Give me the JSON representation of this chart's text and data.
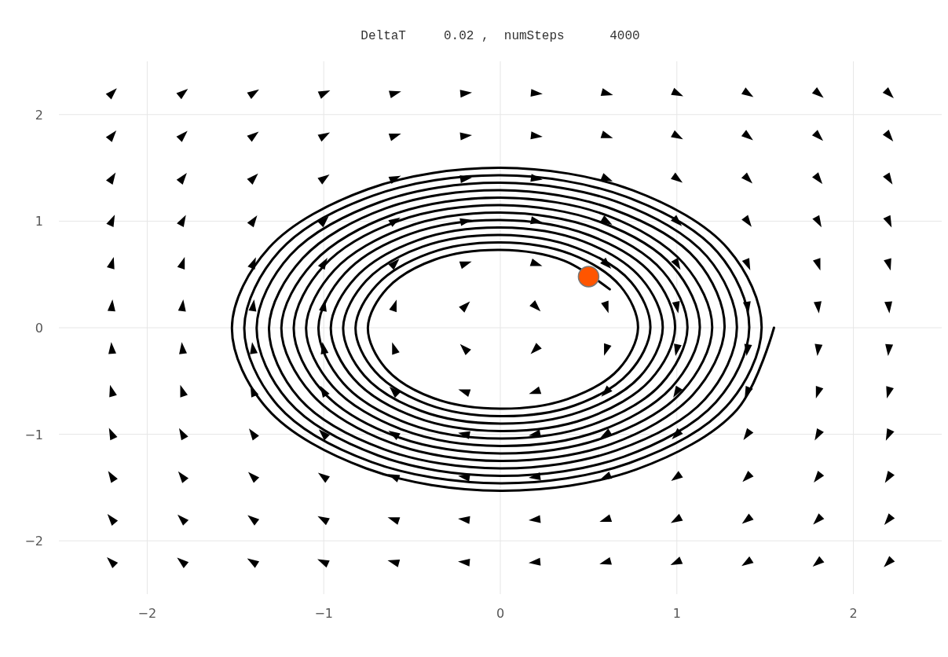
{
  "chart_data": {
    "type": "line",
    "title": "DeltaT     0.02 ,  numSteps      4000",
    "xlim": [
      -2.5,
      2.5
    ],
    "ylim": [
      -2.5,
      2.5
    ],
    "xticks": [
      -2,
      -1,
      0,
      1,
      2
    ],
    "yticks": [
      -2,
      -1,
      0,
      1,
      2
    ],
    "grid": true,
    "series": [
      {
        "type": "scatter",
        "marker": "triangle",
        "color": "#000000",
        "x": [
          -2.2,
          -1.8,
          -1.4,
          -1.0,
          -0.6,
          -0.2,
          0.2,
          0.6,
          1.0,
          1.4,
          1.8,
          2.2,
          -2.2,
          -1.8,
          -1.4,
          -1.0,
          -0.6,
          -0.2,
          0.2,
          0.6,
          1.0,
          1.4,
          1.8,
          2.2,
          -2.2,
          -1.8,
          -1.4,
          -1.0,
          -0.6,
          -0.2,
          0.2,
          0.6,
          1.0,
          1.4,
          1.8,
          2.2,
          -2.2,
          -1.8,
          -1.4,
          -1.0,
          -0.6,
          -0.2,
          0.2,
          0.6,
          1.0,
          1.4,
          1.8,
          2.2,
          -2.2,
          -1.8,
          -1.4,
          -1.0,
          -0.6,
          -0.2,
          0.2,
          0.6,
          1.0,
          1.4,
          1.8,
          2.2,
          -2.2,
          -1.8,
          -1.4,
          -1.0,
          -0.6,
          -0.2,
          0.2,
          0.6,
          1.0,
          1.4,
          1.8,
          2.2,
          -2.2,
          -1.8,
          -1.4,
          -1.0,
          -0.6,
          -0.2,
          0.2,
          0.6,
          1.0,
          1.4,
          1.8,
          2.2,
          -2.2,
          -1.8,
          -1.4,
          -1.0,
          -0.6,
          -0.2,
          0.2,
          0.6,
          1.0,
          1.4,
          1.8,
          2.2,
          -2.2,
          -1.8,
          -1.4,
          -1.0,
          -0.6,
          -0.2,
          0.2,
          0.6,
          1.0,
          1.4,
          1.8,
          2.2,
          -2.2,
          -1.8,
          -1.4,
          -1.0,
          -0.6,
          -0.2,
          0.2,
          0.6,
          1.0,
          1.4,
          1.8,
          2.2,
          -2.2,
          -1.8,
          -1.4,
          -1.0,
          -0.6,
          -0.2,
          0.2,
          0.6,
          1.0,
          1.4,
          1.8,
          2.2,
          -2.2,
          -1.8,
          -1.4,
          -1.0,
          -0.6,
          -0.2,
          0.2,
          0.6,
          1.0,
          1.4,
          1.8,
          2.2
        ],
        "values": [
          2.2,
          2.2,
          2.2,
          2.2,
          2.2,
          2.2,
          2.2,
          2.2,
          2.2,
          2.2,
          2.2,
          2.2,
          1.8,
          1.8,
          1.8,
          1.8,
          1.8,
          1.8,
          1.8,
          1.8,
          1.8,
          1.8,
          1.8,
          1.8,
          1.4,
          1.4,
          1.4,
          1.4,
          1.4,
          1.4,
          1.4,
          1.4,
          1.4,
          1.4,
          1.4,
          1.4,
          1.0,
          1.0,
          1.0,
          1.0,
          1.0,
          1.0,
          1.0,
          1.0,
          1.0,
          1.0,
          1.0,
          1.0,
          0.6,
          0.6,
          0.6,
          0.6,
          0.6,
          0.6,
          0.6,
          0.6,
          0.6,
          0.6,
          0.6,
          0.6,
          0.2,
          0.2,
          0.2,
          0.2,
          0.2,
          0.2,
          0.2,
          0.2,
          0.2,
          0.2,
          0.2,
          0.2,
          -0.2,
          -0.2,
          -0.2,
          -0.2,
          -0.2,
          -0.2,
          -0.2,
          -0.2,
          -0.2,
          -0.2,
          -0.2,
          -0.2,
          -0.6,
          -0.6,
          -0.6,
          -0.6,
          -0.6,
          -0.6,
          -0.6,
          -0.6,
          -0.6,
          -0.6,
          -0.6,
          -0.6,
          -1.0,
          -1.0,
          -1.0,
          -1.0,
          -1.0,
          -1.0,
          -1.0,
          -1.0,
          -1.0,
          -1.0,
          -1.0,
          -1.0,
          -1.4,
          -1.4,
          -1.4,
          -1.4,
          -1.4,
          -1.4,
          -1.4,
          -1.4,
          -1.4,
          -1.4,
          -1.4,
          -1.4,
          -1.8,
          -1.8,
          -1.8,
          -1.8,
          -1.8,
          -1.8,
          -1.8,
          -1.8,
          -1.8,
          -1.8,
          -1.8,
          -1.8,
          -2.2,
          -2.2,
          -2.2,
          -2.2,
          -2.2,
          -2.2,
          -2.2,
          -2.2,
          -2.2,
          -2.2,
          -2.2,
          -2.2
        ]
      },
      {
        "color": "#000000",
        "line_style": "solid",
        "marker": "none",
        "x": [
          1.55,
          1.34,
          0.77,
          0,
          -0.76,
          -1.32,
          -1.52,
          -1.31,
          -0.75,
          0,
          0.75,
          1.29,
          1.48,
          1.28,
          0.73,
          0,
          -0.73,
          -1.26,
          -1.45,
          -1.25,
          -0.72,
          0,
          0.71,
          1.23,
          1.41,
          1.22,
          0.7,
          0,
          -0.69,
          -1.2,
          -1.38,
          -1.19,
          -0.68,
          0,
          0.68,
          1.17,
          1.34,
          1.16,
          0.66,
          0,
          -0.66,
          -1.14,
          -1.31,
          -1.12,
          -0.65,
          0,
          0.64,
          1.11,
          1.27,
          1.09,
          0.63,
          0,
          -0.62,
          -1.07,
          -1.24,
          -1.06,
          -0.61,
          0,
          0.61,
          1.04,
          1.2,
          1.03,
          0.59,
          0,
          -0.59,
          -1.01,
          -1.17,
          -1.0,
          -0.58,
          0,
          0.57,
          0.98,
          1.13,
          0.97,
          0.56,
          0,
          -0.55,
          -0.95,
          -1.1,
          -0.94,
          -0.54,
          0,
          0.54,
          0.92,
          1.06,
          0.91,
          0.52,
          0,
          -0.52,
          -0.89,
          -1.03,
          -0.88,
          -0.51,
          0,
          0.5,
          0.86,
          0.99,
          0.85,
          0.49,
          0,
          -0.48,
          -0.83,
          -0.96,
          -0.82,
          -0.47,
          0,
          0.47,
          0.8,
          0.92,
          0.79,
          0.45,
          0,
          -0.45,
          -0.77,
          -0.89,
          -0.76,
          -0.44,
          0,
          0.43,
          0.74,
          0.85,
          0.73,
          0.42,
          0,
          -0.41,
          -0.71,
          -0.82,
          -0.7,
          -0.4,
          0,
          0.4,
          0.68,
          0.78,
          0.67,
          0.38,
          0,
          -0.38,
          -0.65,
          -0.75,
          -0.64,
          -0.37,
          0,
          0.36,
          0.62
        ],
        "values": [
          0,
          -0.77,
          -1.33,
          -1.53,
          -1.32,
          -0.76,
          0,
          0.75,
          1.3,
          1.5,
          1.29,
          0.74,
          0,
          -0.74,
          -1.27,
          -1.46,
          -1.26,
          -0.73,
          0,
          0.72,
          1.24,
          1.43,
          1.23,
          0.71,
          0,
          -0.7,
          -1.21,
          -1.39,
          -1.2,
          -0.69,
          0,
          0.68,
          1.18,
          1.36,
          1.17,
          0.67,
          0,
          -0.67,
          -1.15,
          -1.32,
          -1.14,
          -0.66,
          0,
          0.65,
          1.12,
          1.29,
          1.11,
          0.64,
          0,
          -0.63,
          -1.09,
          -1.25,
          -1.08,
          -0.62,
          0,
          0.61,
          1.06,
          1.22,
          1.05,
          0.6,
          0,
          -0.6,
          -1.03,
          -1.18,
          -1.02,
          -0.59,
          0,
          0.58,
          1.0,
          1.15,
          0.99,
          0.57,
          0,
          -0.56,
          -0.97,
          -1.11,
          -0.96,
          -0.55,
          0,
          0.54,
          0.94,
          1.08,
          0.93,
          0.53,
          0,
          -0.53,
          -0.91,
          -1.04,
          -0.9,
          -0.52,
          0,
          0.51,
          0.88,
          1.01,
          0.87,
          0.5,
          0,
          -0.49,
          -0.85,
          -0.97,
          -0.84,
          -0.48,
          0,
          0.47,
          0.82,
          0.94,
          0.81,
          0.46,
          0,
          -0.46,
          -0.79,
          -0.9,
          -0.78,
          -0.45,
          0,
          0.44,
          0.76,
          0.87,
          0.75,
          0.43,
          0,
          -0.42,
          -0.73,
          -0.83,
          -0.72,
          -0.41,
          0,
          0.4,
          0.7,
          0.8,
          0.69,
          0.39,
          0,
          -0.39,
          -0.67,
          -0.76,
          -0.66,
          -0.38,
          0,
          0.37,
          0.64,
          0.73,
          0.63,
          0.36
        ]
      },
      {
        "type": "scatter",
        "marker": "circle",
        "color": "#ff5500",
        "x": [
          0.5
        ],
        "values": [
          0.48
        ]
      }
    ]
  }
}
